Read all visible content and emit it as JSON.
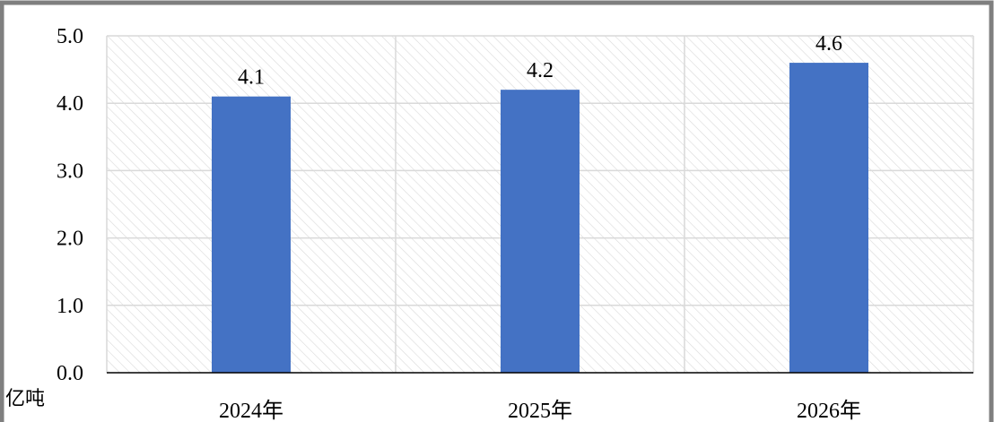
{
  "chart_data": {
    "type": "bar",
    "categories": [
      "2024年",
      "2025年",
      "2026年"
    ],
    "values": [
      4.1,
      4.2,
      4.6
    ],
    "data_labels": [
      "4.1",
      "4.2",
      "4.6"
    ],
    "ylim": [
      0,
      5
    ],
    "y_ticks": [
      0,
      1,
      2,
      3,
      4,
      5
    ],
    "y_tick_labels": [
      "0.0",
      "1.0",
      "2.0",
      "3.0",
      "4.0",
      "5.0"
    ],
    "unit_label": "亿吨",
    "grid": true,
    "plot_background": "diagonal-hatch",
    "colors": {
      "bar": "#4472C4",
      "grid": "#D9D9D9",
      "hatch": "#D9D9D9",
      "frame": "#7F7F7F",
      "axis": "#000000"
    }
  }
}
